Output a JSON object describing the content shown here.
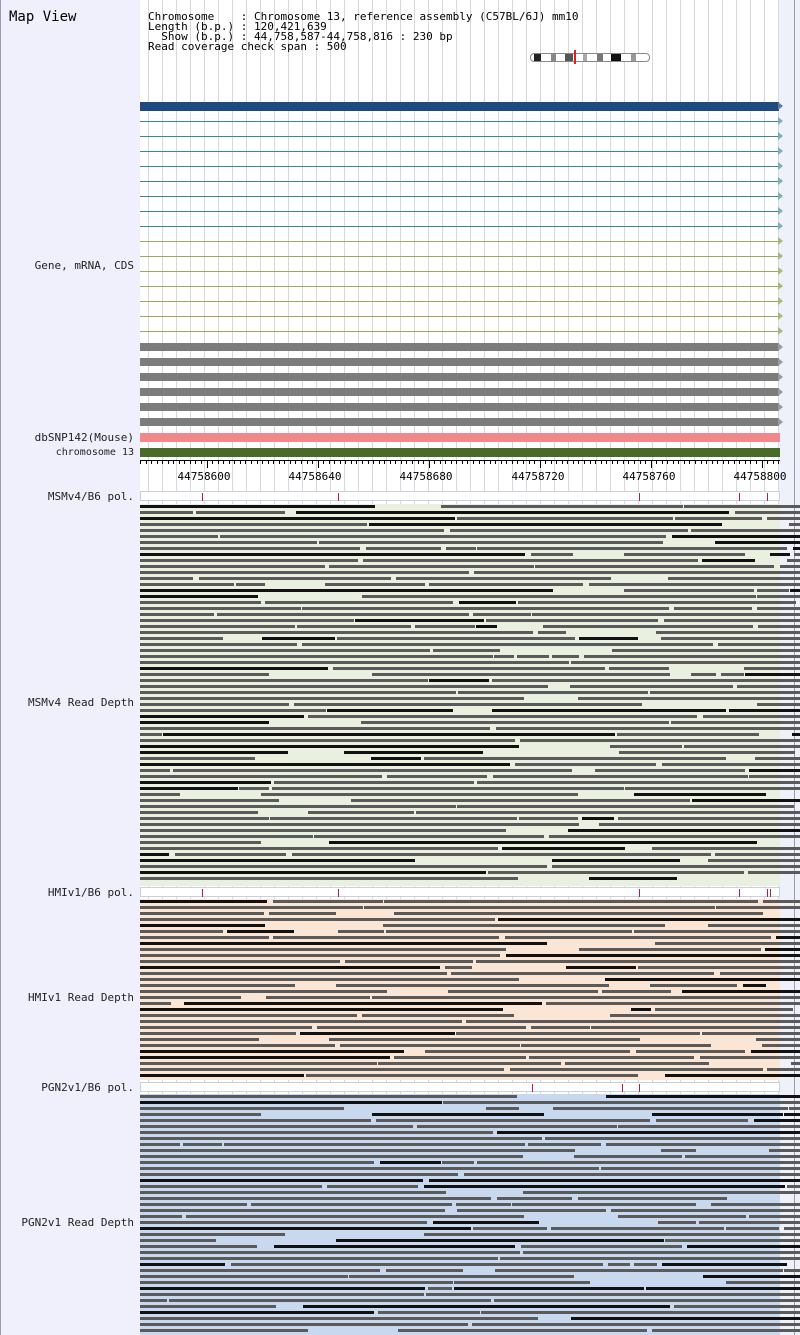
{
  "page": {
    "title": "Map View",
    "info": {
      "chromosome_line": "Chromosome    : Chromosome 13, reference assembly (C57BL/6J) mm10",
      "length_line": "Length (b.p.) : 120,421,639",
      "show_line": "  Show (b.p.) : 44,758,587-44,758,816 : 230 bp",
      "span_line": "Read coverage check span : 500"
    }
  },
  "tracks": {
    "gene_label": "Gene, mRNA, CDS",
    "dbsnp_label": "dbSNP142(Mouse)",
    "chromosome_label": "chromosome 13"
  },
  "ruler": {
    "ticks": [
      "44758600",
      "44758640",
      "44758680",
      "44758720",
      "44758760",
      "44758800"
    ]
  },
  "sections": [
    {
      "pol_label": "MSMv4/B6 pol.",
      "depth_label": "MSMv4 Read Depth",
      "bg": "#eaf0e0"
    },
    {
      "pol_label": "HMIv1/B6 pol.",
      "depth_label": "HMIv1 Read Depth",
      "bg": "#fbe6d6"
    },
    {
      "pol_label": "PGN2v1/B6 pol.",
      "depth_label": "PGN2v1 Read Depth",
      "bg": "#c8d8ee"
    }
  ],
  "colors": {
    "gene_bar": "#1e4a80",
    "mrna_teal": "#3a8a8a",
    "mrna_olive": "#9aa860",
    "cds_gray": "#7c7c7c",
    "dbsnp": "#f0888c",
    "chromosome": "#4a6a2a",
    "pol_mark": "#b02040"
  }
}
